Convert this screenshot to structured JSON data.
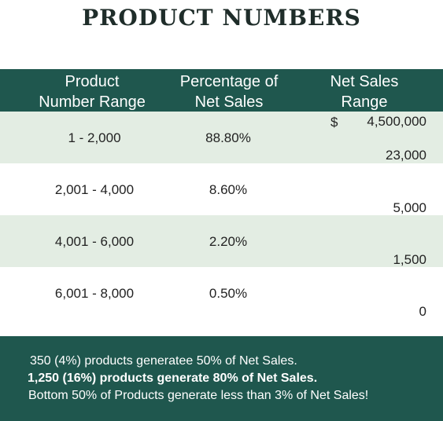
{
  "title": "PRODUCT NUMBERS",
  "headers": {
    "col1_line1": "Product",
    "col1_line2": "Number Range",
    "col2_line1": "Percentage of",
    "col2_line2": "Net Sales",
    "col3_line1": "Net Sales",
    "col3_line2": "Range"
  },
  "rows": [
    {
      "range": "1 - 2,000",
      "percent": "88.80%",
      "currency": "$",
      "sales_top": "4,500,000",
      "sales_bottom": "23,000"
    },
    {
      "range": "2,001 - 4,000",
      "percent": "8.60%",
      "sales_bottom": "5,000"
    },
    {
      "range": "4,001 - 6,000",
      "percent": "2.20%",
      "sales_bottom": "1,500"
    },
    {
      "range": "6,001 - 8,000",
      "percent": "0.50%",
      "sales_bottom": "0"
    }
  ],
  "footer": {
    "line1": "350 (4%) products generatee 50% of Net Sales.",
    "line2": "1,250 (16%) products generate 80% of Net Sales.",
    "line3": "Bottom 50% of Products generate less than 3% of Net Sales!"
  },
  "colors": {
    "header_bg": "#1f574e",
    "alt_row_bg": "#e3ede3",
    "title_text": "#1f2d2a"
  }
}
